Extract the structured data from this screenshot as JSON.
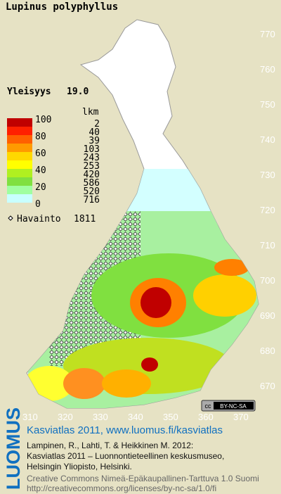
{
  "header": {
    "title": "Lupinus polyphyllus",
    "frequency_label": "Yleisyys",
    "frequency": "19.0"
  },
  "legend": {
    "scale": [
      "100",
      "80",
      "60",
      "40",
      "20",
      "0"
    ],
    "count_title": "lkm",
    "counts": [
      "2",
      "40",
      "39",
      "103",
      "243",
      "253",
      "420",
      "586",
      "520",
      "716"
    ],
    "observation_label": "Havainto",
    "observations": "1811"
  },
  "grid": {
    "north": [
      "770",
      "760",
      "750",
      "740",
      "730",
      "720",
      "710",
      "700",
      "690",
      "680",
      "670"
    ],
    "east": [
      "310",
      "320",
      "330",
      "340",
      "350",
      "360",
      "370"
    ]
  },
  "license_badge": {
    "icon": "cc",
    "text": "BY-NC-SA"
  },
  "footer": {
    "brand": "LUOMUS",
    "headline": "Kasviatlas 2011, www.luomus.fi/kasviatlas",
    "citation": [
      "Lampinen, R., Lahti, T. & Heikkinen M. 2012:",
      "Kasviatlas 2011 – Luonnontieteellinen keskusmuseo,",
      "Helsingin Yliopisto, Helsinki."
    ],
    "license": [
      "Creative Commons Nimeä-Epäkaupallinen-Tarttuva 1.0 Suomi",
      "http://creativecommons.org/licenses/by-nc-sa/1.0/fi"
    ]
  }
}
